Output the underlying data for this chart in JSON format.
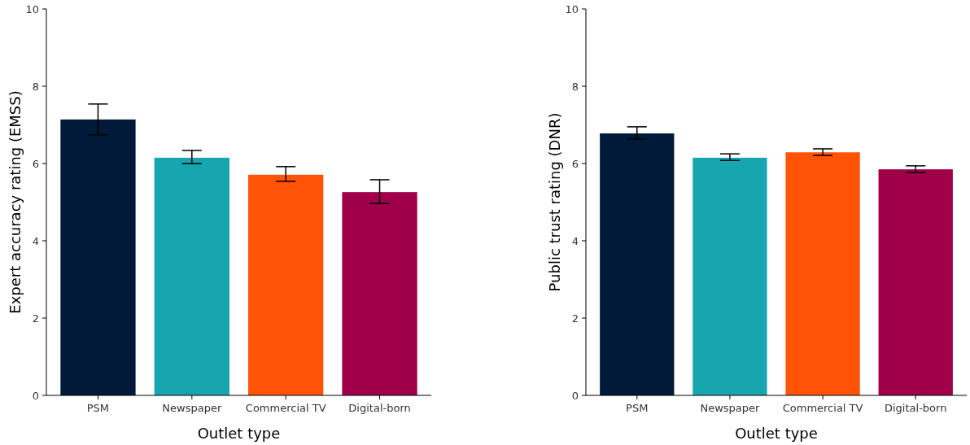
{
  "chart_data": [
    {
      "type": "bar",
      "xlabel": "Outlet type",
      "ylabel": "Expert accuracy rating (EMSS)",
      "categories": [
        "PSM",
        "Newspaper",
        "Commercial TV",
        "Digital-born"
      ],
      "values": [
        7.14,
        6.15,
        5.71,
        5.26
      ],
      "colors": [
        "#011a3a",
        "#17a5b0",
        "#ff5408",
        "#a0004a"
      ],
      "errors": [
        [
          6.74,
          7.54
        ],
        [
          6.0,
          6.34
        ],
        [
          5.54,
          5.92
        ],
        [
          4.97,
          5.58
        ]
      ],
      "ylim": [
        0,
        10
      ],
      "yticks": [
        0,
        2,
        4,
        6,
        8,
        10
      ],
      "grid": false
    },
    {
      "type": "bar",
      "xlabel": "Outlet type",
      "ylabel": "Public trust rating (DNR)",
      "categories": [
        "PSM",
        "Newspaper",
        "Commercial TV",
        "Digital-born"
      ],
      "values": [
        6.78,
        6.15,
        6.29,
        5.85
      ],
      "colors": [
        "#011a3a",
        "#17a5b0",
        "#ff5408",
        "#a0004a"
      ],
      "errors": [
        [
          6.63,
          6.95
        ],
        [
          6.08,
          6.25
        ],
        [
          6.21,
          6.38
        ],
        [
          5.77,
          5.94
        ]
      ],
      "ylim": [
        0,
        10
      ],
      "yticks": [
        0,
        2,
        4,
        6,
        8,
        10
      ],
      "grid": false
    }
  ]
}
